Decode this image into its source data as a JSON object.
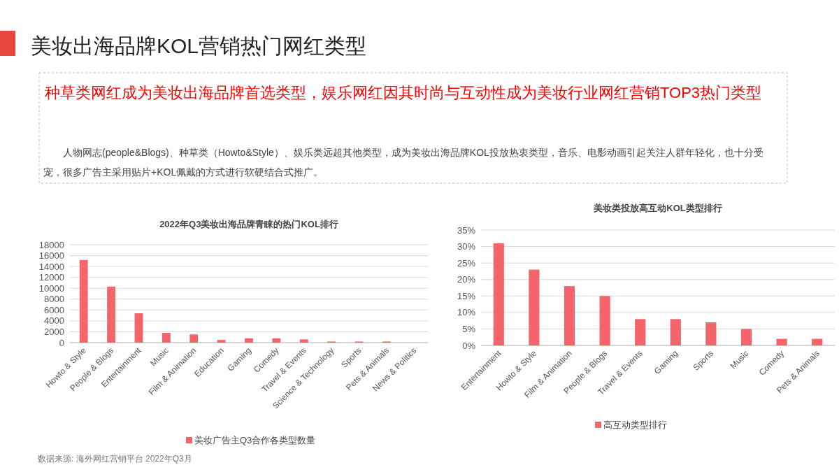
{
  "chart_data": [
    {
      "type": "other",
      "title": "美妆出海品牌KOL营销热门网红类型",
      "subtitle": "种草类网红成为美妆出海品牌首选类型，娱乐网红因其时尚与互动性成为美妆行业网红营销TOP3热门类型",
      "annotations": [
        "人物网志(people&Blogs)、种草类（Howto&Style）、娱乐类远超其他类型，成为美妆出海品牌KOL投放热衷类型，音乐、电影动画引起关注人群年轻化，也十分受宠，很多广告主采用贴片+KOL佩戴的方式进行软硬结合式推广。"
      ]
    },
    {
      "type": "bar",
      "title": "2022年Q3美妆出海品牌青睐的热门KOL排行",
      "categories": [
        "Howto & Style",
        "People & Blogs",
        "Entertainment",
        "Music",
        "Film & Animation",
        "Education",
        "Gaming",
        "Comedy",
        "Travel & Events",
        "Science & Technology",
        "Sports",
        "Pets & Animals",
        "News & Politics"
      ],
      "series": [
        {
          "name": "美妆广告主Q3合作各类型数量",
          "color": "#f4646b",
          "values": [
            15200,
            10300,
            5400,
            1800,
            1500,
            500,
            800,
            800,
            600,
            200,
            200,
            200,
            0
          ]
        }
      ],
      "ylim": [
        0,
        18000
      ],
      "yticks": [
        0,
        2000,
        4000,
        6000,
        8000,
        10000,
        12000,
        14000,
        16000,
        18000
      ],
      "grid": "y",
      "legend": "bottom",
      "annotations": [
        "数据来源: 海外网红营销平台 2022年Q3月"
      ]
    },
    {
      "type": "bar",
      "title": "美妆类投放高互动KOL类型排行",
      "categories": [
        "Entertainment",
        "Howto & Style",
        "Film & Animation",
        "People & Blogs",
        "Travel & Events",
        "Gaming",
        "Sports",
        "Music",
        "Comedy",
        "Pets & Animals"
      ],
      "series": [
        {
          "name": "高互动类型排行",
          "color": "#f4646b",
          "values": [
            31,
            23,
            18,
            15,
            8,
            8,
            7,
            5,
            2,
            2
          ]
        }
      ],
      "ylim": [
        0,
        35
      ],
      "yticks": [
        {
          "value": 0,
          "label": "0%"
        },
        {
          "value": 5,
          "label": "5%"
        },
        {
          "value": 10,
          "label": "10%"
        },
        {
          "value": 15,
          "label": "15%"
        },
        {
          "value": 20,
          "label": "20%"
        },
        {
          "value": 25,
          "label": "25%"
        },
        {
          "value": 30,
          "label": "30%"
        },
        {
          "value": 35,
          "label": "35%"
        }
      ],
      "grid": "y",
      "legend": "bottom"
    }
  ]
}
